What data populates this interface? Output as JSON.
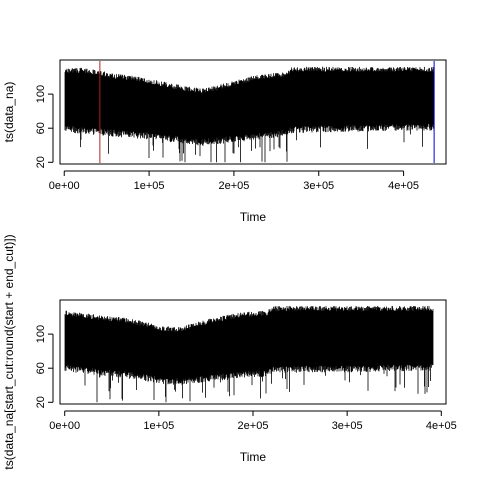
{
  "chart_data": [
    {
      "type": "line",
      "title": "",
      "xlabel": "Time",
      "ylabel": "ts(data_na)",
      "xlim": [
        -5000,
        450000
      ],
      "ylim": [
        18,
        140
      ],
      "x_ticks": [
        0,
        100000,
        200000,
        300000,
        400000
      ],
      "x_tick_labels": [
        "0e+00",
        "1e+05",
        "2e+05",
        "3e+05",
        "4e+05"
      ],
      "y_ticks": [
        20,
        60,
        100
      ],
      "y_tick_labels": [
        "20",
        "60",
        "100"
      ],
      "series": [
        {
          "color": "#000000",
          "x_end": 436000,
          "upper_envelope": [
            [
              0,
              130
            ],
            [
              20000,
              131
            ],
            [
              40000,
              128
            ],
            [
              60000,
              124
            ],
            [
              80000,
              122
            ],
            [
              100000,
              118
            ],
            [
              130000,
              112
            ],
            [
              160000,
              107
            ],
            [
              180000,
              110
            ],
            [
              200000,
              116
            ],
            [
              230000,
              123
            ],
            [
              262000,
              126
            ],
            [
              268000,
              132
            ],
            [
              300000,
              132
            ],
            [
              350000,
              132
            ],
            [
              400000,
              132
            ],
            [
              436000,
              132
            ]
          ],
          "lower_envelope": [
            [
              0,
              56
            ],
            [
              20000,
              53
            ],
            [
              40000,
              52
            ],
            [
              60000,
              50
            ],
            [
              80000,
              48
            ],
            [
              100000,
              47
            ],
            [
              130000,
              43
            ],
            [
              160000,
              39
            ],
            [
              180000,
              41
            ],
            [
              200000,
              43
            ],
            [
              230000,
              47
            ],
            [
              262000,
              50
            ],
            [
              268000,
              54
            ],
            [
              300000,
              55
            ],
            [
              350000,
              56
            ],
            [
              400000,
              57
            ],
            [
              436000,
              57
            ]
          ]
        }
      ],
      "vlines": [
        {
          "x": 42000,
          "color": "#b22222"
        },
        {
          "x": 436000,
          "color": "#0000cd"
        }
      ],
      "grid": false
    },
    {
      "type": "line",
      "title": "",
      "xlabel": "Time",
      "ylabel": "ts(data_na[start_cut:round(start + end_cut)])",
      "xlim": [
        -5000,
        405000
      ],
      "ylim": [
        18,
        140
      ],
      "x_ticks": [
        0,
        100000,
        200000,
        300000,
        400000
      ],
      "x_tick_labels": [
        "0e+00",
        "1e+05",
        "2e+05",
        "3e+05",
        "4e+05"
      ],
      "y_ticks": [
        20,
        60,
        100
      ],
      "y_tick_labels": [
        "20",
        "60",
        "100"
      ],
      "series": [
        {
          "color": "#000000",
          "x_end": 392000,
          "upper_envelope": [
            [
              0,
              128
            ],
            [
              20000,
              125
            ],
            [
              40000,
              122
            ],
            [
              60000,
              120
            ],
            [
              80000,
              116
            ],
            [
              100000,
              110
            ],
            [
              120000,
              108
            ],
            [
              140000,
              114
            ],
            [
              160000,
              120
            ],
            [
              190000,
              126
            ],
            [
              215000,
              128
            ],
            [
              222000,
              133
            ],
            [
              260000,
              133
            ],
            [
              300000,
              133
            ],
            [
              350000,
              133
            ],
            [
              392000,
              133
            ]
          ],
          "lower_envelope": [
            [
              0,
              57
            ],
            [
              20000,
              53
            ],
            [
              40000,
              51
            ],
            [
              60000,
              49
            ],
            [
              80000,
              46
            ],
            [
              100000,
              42
            ],
            [
              120000,
              40
            ],
            [
              140000,
              42
            ],
            [
              160000,
              45
            ],
            [
              190000,
              48
            ],
            [
              215000,
              50
            ],
            [
              222000,
              54
            ],
            [
              260000,
              55
            ],
            [
              300000,
              55
            ],
            [
              350000,
              56
            ],
            [
              392000,
              57
            ]
          ]
        }
      ],
      "vlines": [],
      "grid": false
    }
  ]
}
